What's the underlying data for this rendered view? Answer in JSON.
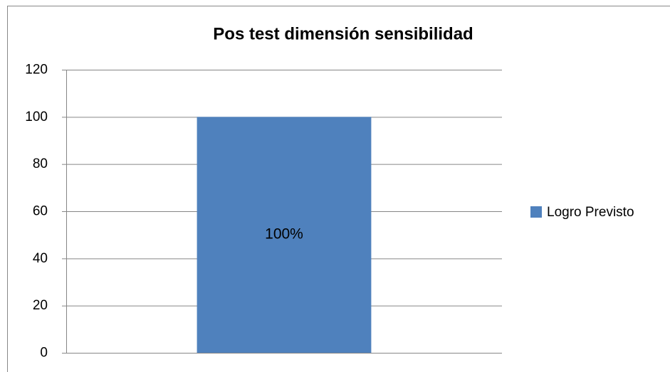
{
  "chart_data": {
    "type": "bar",
    "title": "Pos test dimensión sensibilidad",
    "categories": [
      null
    ],
    "series": [
      {
        "name": "Logro Previsto",
        "color": "#4f81bd",
        "values": [
          100
        ],
        "value_labels": [
          "100%"
        ]
      }
    ],
    "ylim": [
      0,
      120
    ],
    "yticks": [
      0,
      20,
      40,
      60,
      80,
      100,
      120
    ],
    "grid": true,
    "legend": "right"
  }
}
